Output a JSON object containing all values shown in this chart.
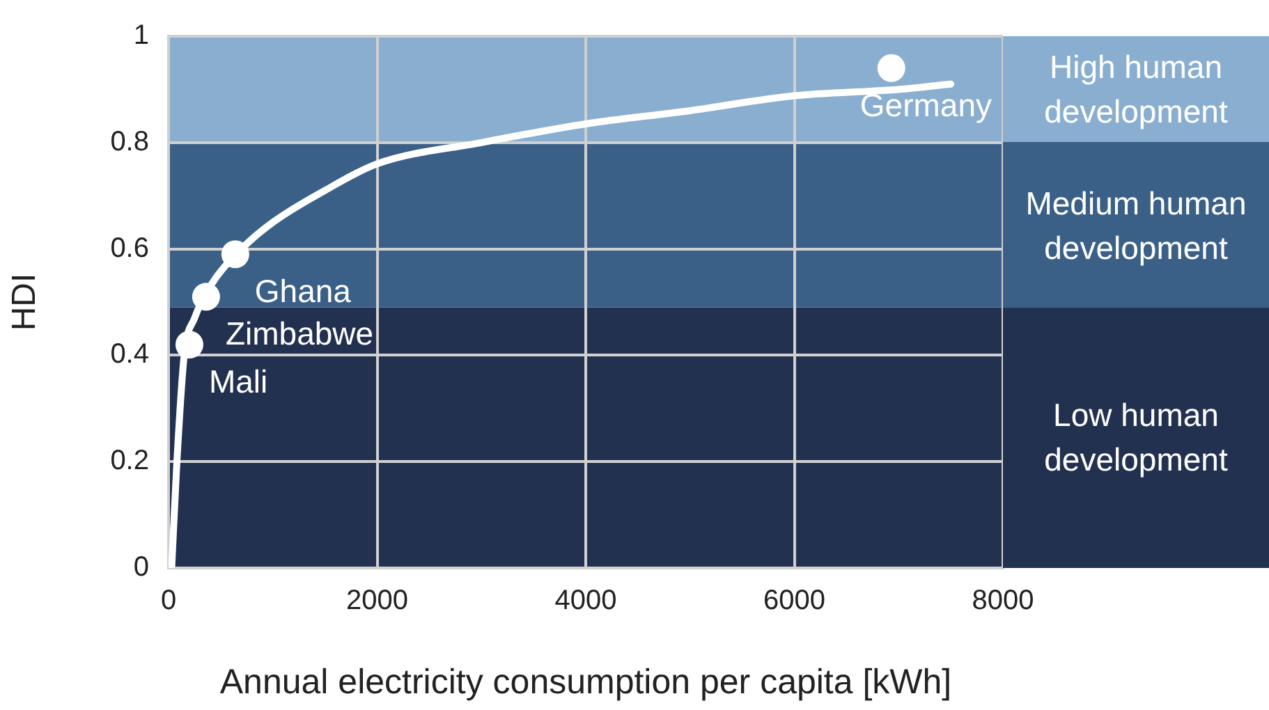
{
  "chart_data": {
    "type": "line",
    "xlabel": "Annual electricity consumption per capita [kWh]",
    "ylabel": "HDI",
    "xlim": [
      0,
      8000
    ],
    "xticks": [
      0,
      2000,
      4000,
      6000,
      8000
    ],
    "ylim": [
      0,
      1
    ],
    "yticks": [
      0,
      0.2,
      0.4,
      0.6,
      0.8,
      1
    ],
    "grid": true,
    "legend": false,
    "series": [
      {
        "type": "line",
        "color": "#ffffff",
        "marker": "none",
        "x": [
          30,
          80,
          150,
          250,
          400,
          700,
          1000,
          1500,
          2000,
          3000,
          4000,
          5000,
          6000,
          7000,
          7500
        ],
        "values": [
          0,
          0.2,
          0.4,
          0.47,
          0.53,
          0.6,
          0.65,
          0.71,
          0.76,
          0.8,
          0.835,
          0.86,
          0.888,
          0.9,
          0.91
        ]
      },
      {
        "type": "scatter",
        "color": "#ffffff",
        "marker": "circle",
        "x": [
          200,
          360,
          640,
          6930
        ],
        "values": [
          0.42,
          0.51,
          0.59,
          0.94
        ]
      }
    ],
    "bands": [
      {
        "axis": "y",
        "from": 0,
        "to": 0.49,
        "label": "Low human development",
        "color": "#233150"
      },
      {
        "axis": "y",
        "from": 0.49,
        "to": 0.8,
        "label": "Medium human development",
        "color": "#3b6088"
      },
      {
        "axis": "y",
        "from": 0.8,
        "to": 1,
        "label": "High human development",
        "color": "#89aecf"
      }
    ],
    "annotations": [
      {
        "text": "Mali",
        "x": 200,
        "y": 0.42
      },
      {
        "text": "Zimbabwe",
        "x": 360,
        "y": 0.51
      },
      {
        "text": "Ghana",
        "x": 640,
        "y": 0.59
      },
      {
        "text": "Germany",
        "x": 6930,
        "y": 0.94
      }
    ]
  }
}
